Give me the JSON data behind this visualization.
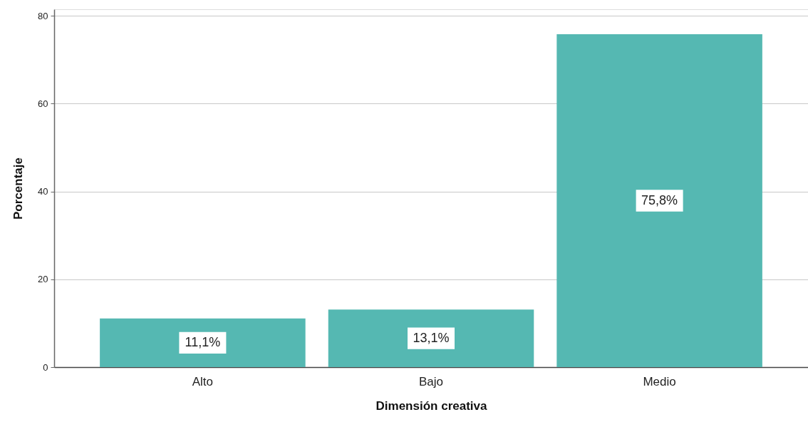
{
  "chart_data": {
    "type": "bar",
    "xlabel": "Dimensión creativa",
    "ylabel": "Porcentaje",
    "categories": [
      "Alto",
      "Bajo",
      "Medio"
    ],
    "values": [
      11.1,
      13.1,
      75.8
    ],
    "color": "#55b8b2",
    "value_labels": [
      "11,1%",
      "13,1%",
      "75,8%"
    ],
    "ylim": [
      0,
      81.5
    ],
    "yticks": [
      0,
      20,
      40,
      60,
      80
    ],
    "grid": "y"
  }
}
